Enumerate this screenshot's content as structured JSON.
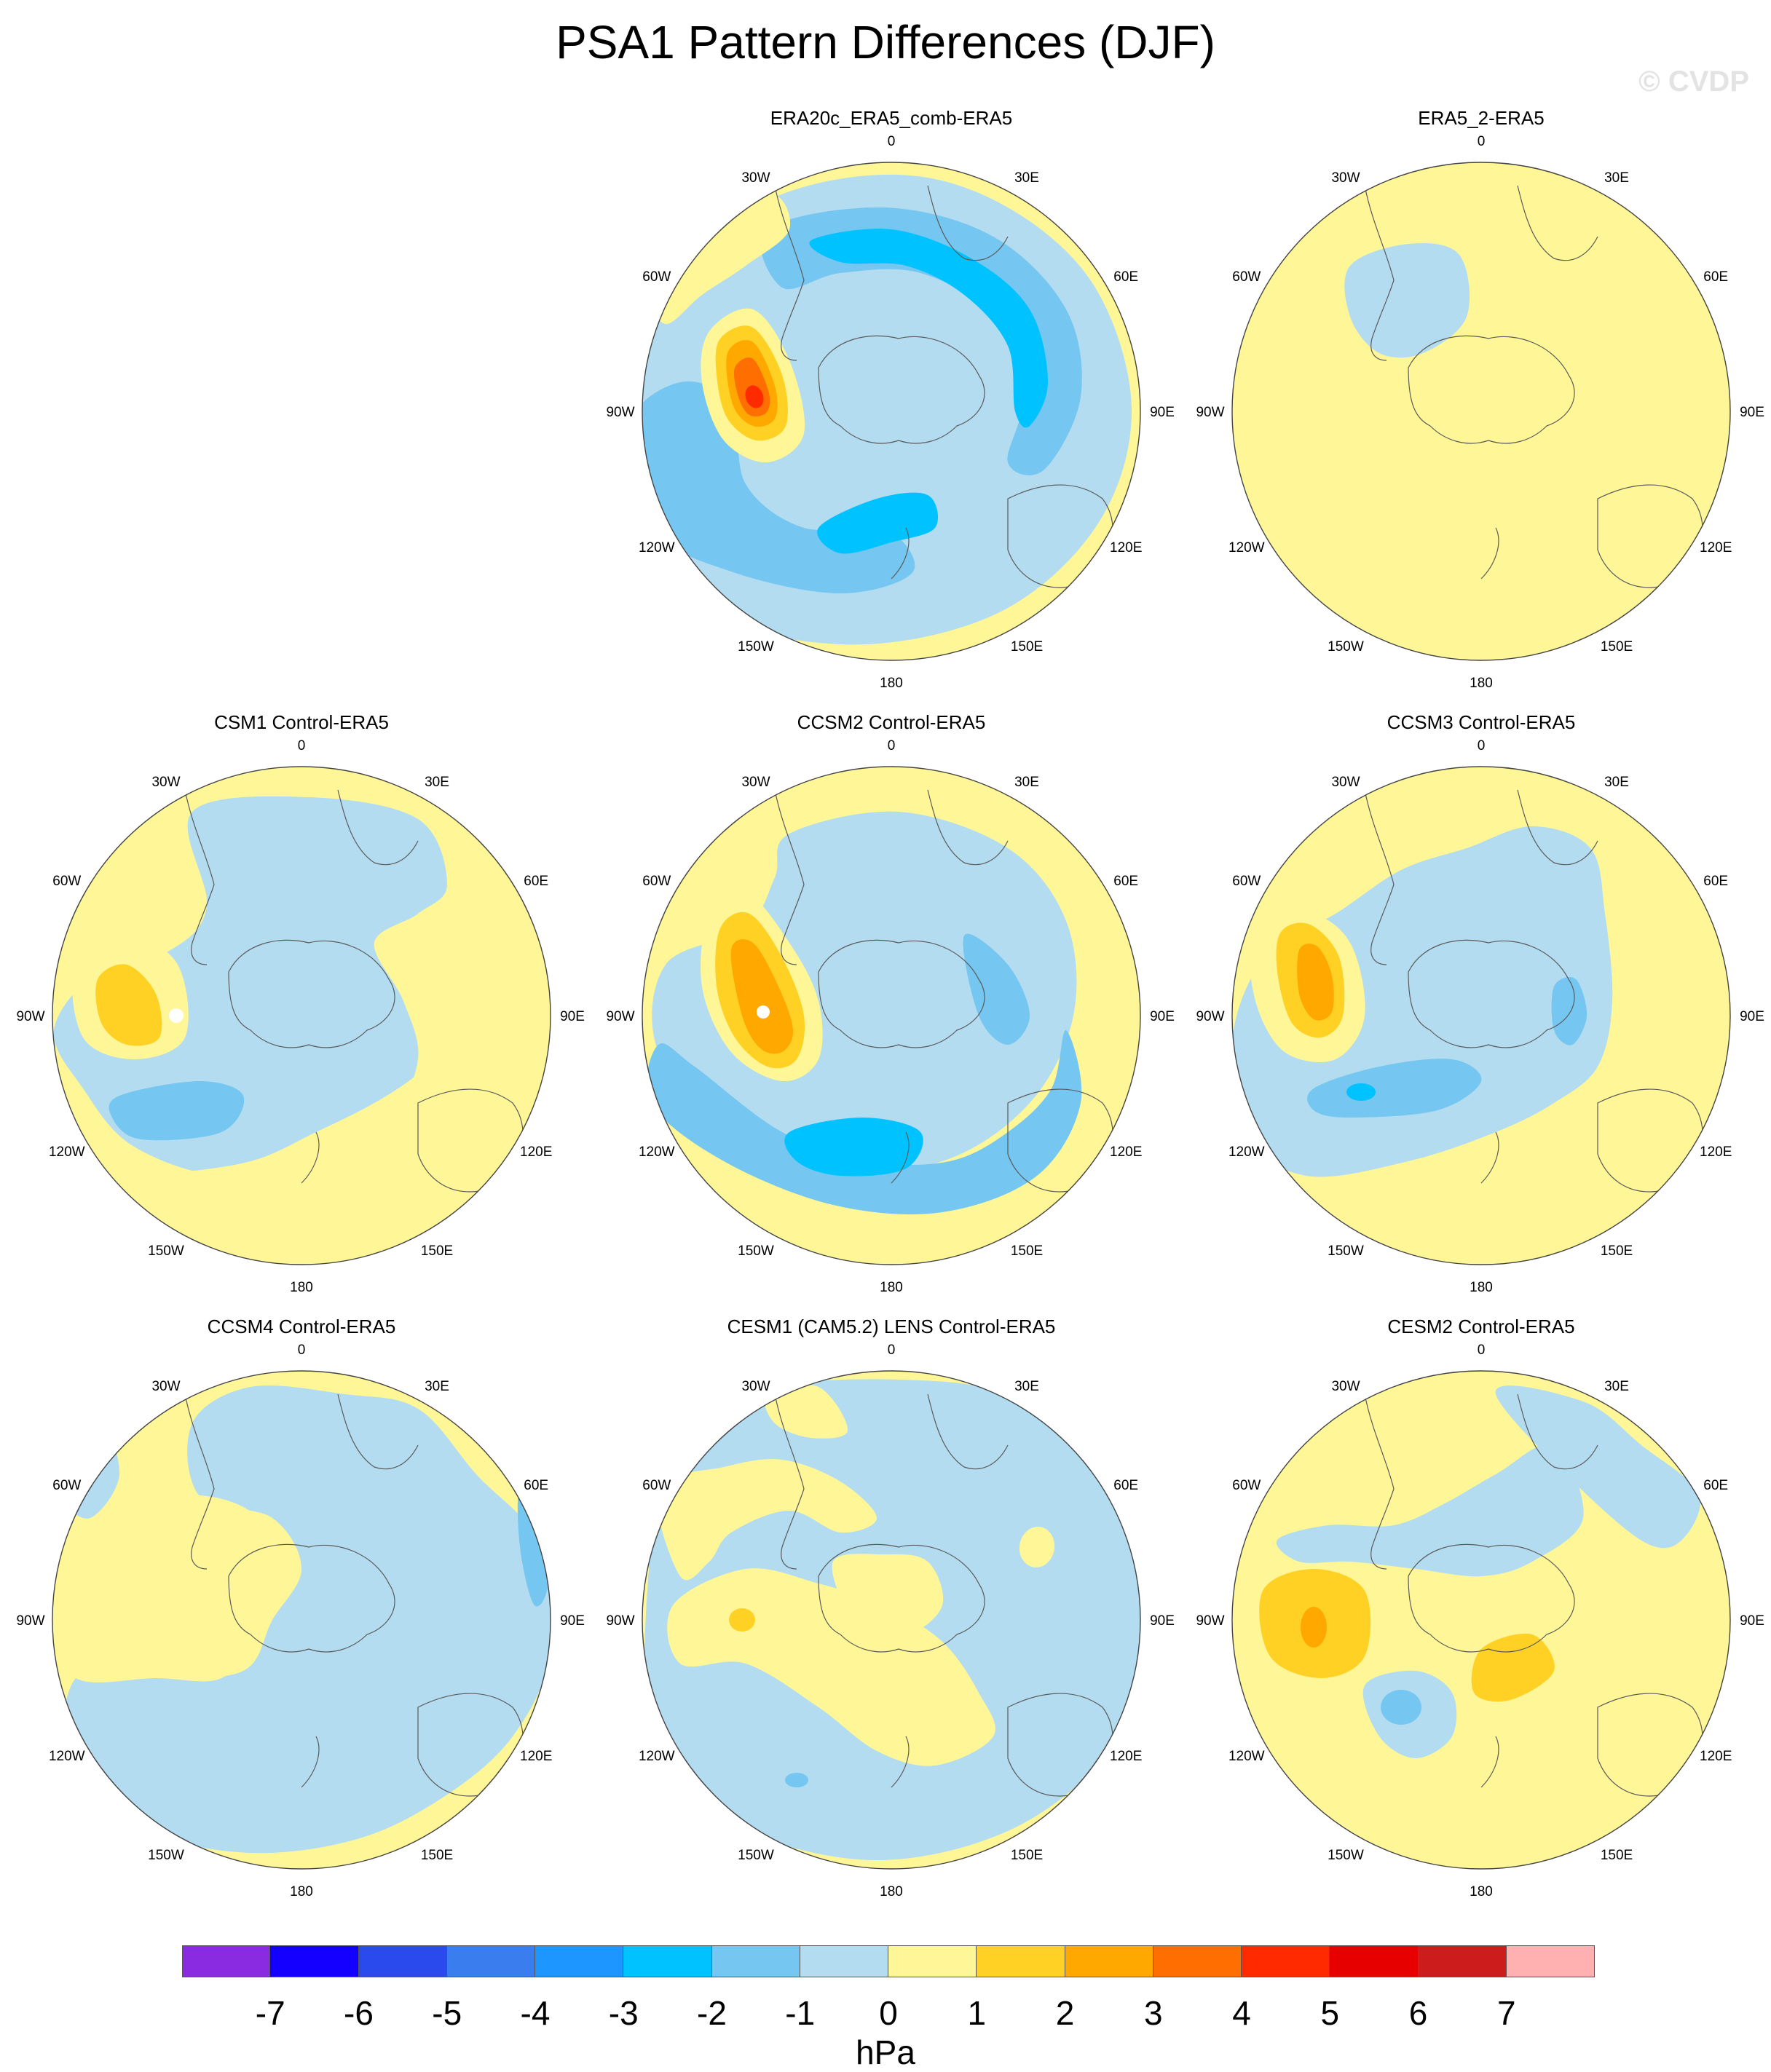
{
  "title": "PSA1 Pattern Differences (DJF)",
  "watermark": "© CVDP",
  "units": "hPa",
  "colors": {
    "ocean_neg1": "#b3dcf0",
    "neg2": "#75c6f0",
    "neg3": "#00c2ff",
    "pos1": "#fff797",
    "pos2": "#ffd124",
    "pos3": "#ffa800",
    "pos4": "#ff6e00",
    "pos5": "#ff2a00",
    "coast": "#5a5a5a"
  },
  "colorbar": {
    "colors": [
      "#8a2be2",
      "#1400ff",
      "#2b4aee",
      "#3a7def",
      "#1e96ff",
      "#00c2ff",
      "#75c6f0",
      "#b3dcf0",
      "#fff797",
      "#ffd124",
      "#ffa800",
      "#ff6e00",
      "#ff2a00",
      "#e60000",
      "#cc1c1c",
      "#ffb0b0"
    ],
    "labels": [
      "-7",
      "-6",
      "-5",
      "-4",
      "-3",
      "-2",
      "-1",
      "0",
      "1",
      "2",
      "3",
      "4",
      "5",
      "6",
      "7"
    ]
  },
  "lon_labels": [
    "0",
    "30E",
    "60E",
    "90E",
    "120E",
    "150E",
    "180",
    "150W",
    "120W",
    "90W",
    "60W",
    "30W"
  ],
  "panels": [
    {
      "title": "ERA20c_ERA5_comb-ERA5",
      "pattern": "era20c"
    },
    {
      "title": "ERA5_2-ERA5",
      "pattern": "era5_2"
    },
    {
      "title": "CSM1 Control-ERA5",
      "pattern": "csm1"
    },
    {
      "title": "CCSM2 Control-ERA5",
      "pattern": "ccsm2"
    },
    {
      "title": "CCSM3 Control-ERA5",
      "pattern": "ccsm3"
    },
    {
      "title": "CCSM4 Control-ERA5",
      "pattern": "ccsm4"
    },
    {
      "title": "CESM1 (CAM5.2) LENS Control-ERA5",
      "pattern": "cesm1"
    },
    {
      "title": "CESM2 Control-ERA5",
      "pattern": "cesm2"
    }
  ]
}
